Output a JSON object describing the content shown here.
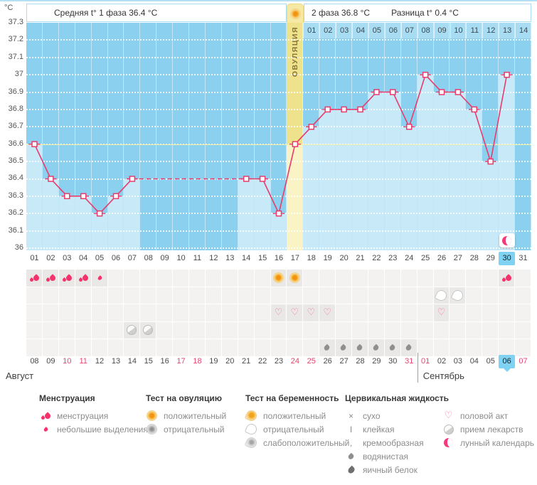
{
  "header": {
    "y_axis_unit": "°C",
    "phase1": "Средняя t° 1 фаза 36.4 °C",
    "phase2": "2 фаза 36.8 °C",
    "difference": "Разница t° 0.4 °C",
    "ovulation_label": "ОВУЛЯЦИЯ"
  },
  "colors": {
    "chart_bg": "#8bd0ee",
    "chart_fill": "#c7e9f8",
    "ovulation_band": "#efe28d",
    "ovulation_band_fill": "#faf3c6",
    "coverline": "#eff0a6",
    "temp_line": "#e73c6c",
    "highlight_blue": "#7fd2f1",
    "weekend_red": "#e8426f",
    "menstruation_pink": "#f5326b",
    "test_orange": "#f2930d",
    "gray_icon": "#8f8f8f"
  },
  "chart_data": {
    "type": "line",
    "ylim": [
      36.0,
      37.3
    ],
    "grid": true,
    "y_ticks": [
      "37.3",
      "37.2",
      "37.1",
      "37",
      "36.9",
      "36.8",
      "36.7",
      "36.6",
      "36.5",
      "36.4",
      "36.3",
      "36.2",
      "36.1",
      "36"
    ],
    "x_labels": [
      "01",
      "02",
      "03",
      "04",
      "05",
      "06",
      "07",
      "08",
      "09",
      "10",
      "11",
      "12",
      "13",
      "14",
      "15",
      "16",
      "17",
      "18",
      "19",
      "20",
      "21",
      "22",
      "23",
      "24",
      "25",
      "26",
      "27",
      "28",
      "29",
      "30",
      "31"
    ],
    "series": [
      {
        "points": [
          [
            1,
            36.6
          ],
          [
            2,
            36.4
          ],
          [
            3,
            36.3
          ],
          [
            4,
            36.3
          ],
          [
            5,
            36.2
          ],
          [
            6,
            36.3
          ],
          [
            7,
            36.4
          ],
          [
            14,
            36.4
          ],
          [
            15,
            36.4
          ],
          [
            16,
            36.2
          ],
          [
            17,
            36.6
          ],
          [
            18,
            36.7
          ],
          [
            19,
            36.8
          ],
          [
            20,
            36.8
          ],
          [
            21,
            36.8
          ],
          [
            22,
            36.9
          ],
          [
            23,
            36.9
          ],
          [
            24,
            36.7
          ],
          [
            25,
            37.0
          ],
          [
            26,
            36.9
          ],
          [
            27,
            36.9
          ],
          [
            28,
            36.8
          ],
          [
            29,
            36.5
          ],
          [
            30,
            37.0
          ]
        ]
      }
    ],
    "gap_dashed_between_days": [
      7,
      14
    ],
    "coverline": 36.6,
    "ovulation_day": 17,
    "dpo": {
      "start_day": 18,
      "labels": [
        "01",
        "02",
        "03",
        "04",
        "05",
        "06",
        "07",
        "08",
        "09",
        "10",
        "11",
        "12",
        "13",
        "14"
      ]
    },
    "lunar_marker_day": 30
  },
  "cycle": {
    "current_day": 30
  },
  "symbols": {
    "rows": [
      {
        "name": "menstruation-and-ovulation-tests",
        "cells": [
          {
            "day": 1,
            "icon": "drop-big"
          },
          {
            "day": 2,
            "icon": "drop-big"
          },
          {
            "day": 3,
            "icon": "drop-big"
          },
          {
            "day": 4,
            "icon": "drop-big"
          },
          {
            "day": 5,
            "icon": "drop-small"
          },
          {
            "day": 16,
            "icon": "ovu-pos"
          },
          {
            "day": 17,
            "icon": "ovu-pos"
          },
          {
            "day": 30,
            "icon": "drop-big"
          }
        ]
      },
      {
        "name": "pregnancy-tests",
        "cells": [
          {
            "day": 26,
            "icon": "preg-neg"
          },
          {
            "day": 27,
            "icon": "preg-neg"
          }
        ]
      },
      {
        "name": "intercourse",
        "cells": [
          {
            "day": 16,
            "icon": "heart"
          },
          {
            "day": 17,
            "icon": "heart"
          },
          {
            "day": 18,
            "icon": "heart"
          },
          {
            "day": 19,
            "icon": "heart"
          },
          {
            "day": 26,
            "icon": "heart"
          }
        ]
      },
      {
        "name": "medication",
        "cells": [
          {
            "day": 7,
            "icon": "pill"
          },
          {
            "day": 8,
            "icon": "pill"
          }
        ]
      },
      {
        "name": "cervical-fluid",
        "cells": [
          {
            "day": 19,
            "icon": "cf-watery"
          },
          {
            "day": 20,
            "icon": "cf-watery"
          },
          {
            "day": 21,
            "icon": "cf-watery"
          },
          {
            "day": 22,
            "icon": "cf-watery"
          },
          {
            "day": 23,
            "icon": "cf-watery"
          },
          {
            "day": 24,
            "icon": "cf-watery"
          }
        ]
      }
    ]
  },
  "calendar": {
    "dates": [
      {
        "label": "08"
      },
      {
        "label": "09"
      },
      {
        "label": "10",
        "weekend": true
      },
      {
        "label": "11",
        "weekend": true
      },
      {
        "label": "12"
      },
      {
        "label": "13"
      },
      {
        "label": "14"
      },
      {
        "label": "15"
      },
      {
        "label": "16"
      },
      {
        "label": "17",
        "weekend": true
      },
      {
        "label": "18",
        "weekend": true
      },
      {
        "label": "19"
      },
      {
        "label": "20"
      },
      {
        "label": "21"
      },
      {
        "label": "22"
      },
      {
        "label": "23"
      },
      {
        "label": "24",
        "weekend": true
      },
      {
        "label": "25",
        "weekend": true
      },
      {
        "label": "26"
      },
      {
        "label": "27"
      },
      {
        "label": "28"
      },
      {
        "label": "29"
      },
      {
        "label": "30"
      },
      {
        "label": "31",
        "weekend": true
      },
      {
        "label": "01",
        "weekend": true
      },
      {
        "label": "02"
      },
      {
        "label": "03"
      },
      {
        "label": "04"
      },
      {
        "label": "05"
      },
      {
        "label": "06",
        "today": true
      },
      {
        "label": "07",
        "weekend": true
      }
    ],
    "month_split_index": 24,
    "months": [
      {
        "name": "Август"
      },
      {
        "name": "Сентябрь"
      }
    ]
  },
  "legend": {
    "groups": [
      {
        "title": "Менструация",
        "items": [
          {
            "icon": "drop-big",
            "label": "менструация"
          },
          {
            "icon": "drop-small",
            "label": "небольшие выделения"
          }
        ]
      },
      {
        "title": "Тест на овуляцию",
        "items": [
          {
            "icon": "ovu-pos",
            "label": "положительный"
          },
          {
            "icon": "ovu-neg",
            "label": "отрицательный"
          }
        ]
      },
      {
        "title": "Тест на беременность",
        "items": [
          {
            "icon": "preg-pos",
            "label": "положительный"
          },
          {
            "icon": "preg-neg",
            "label": "отрицательный"
          },
          {
            "icon": "preg-weak",
            "label": "слабоположительный"
          }
        ]
      },
      {
        "title": "Цервикальная жидкость",
        "items": [
          {
            "icon": "cf-dry",
            "label": "сухо"
          },
          {
            "icon": "cf-sticky",
            "label": "клейкая"
          },
          {
            "icon": "cf-creamy",
            "label": "кремообразная"
          },
          {
            "icon": "cf-watery",
            "label": "водянистая"
          },
          {
            "icon": "cf-eggwhite",
            "label": "яичный белок"
          }
        ]
      },
      {
        "title": "",
        "items": [
          {
            "icon": "heart",
            "label": "половой акт"
          },
          {
            "icon": "pill",
            "label": "прием лекарств"
          },
          {
            "icon": "moon",
            "label": "лунный календарь"
          }
        ]
      }
    ]
  }
}
